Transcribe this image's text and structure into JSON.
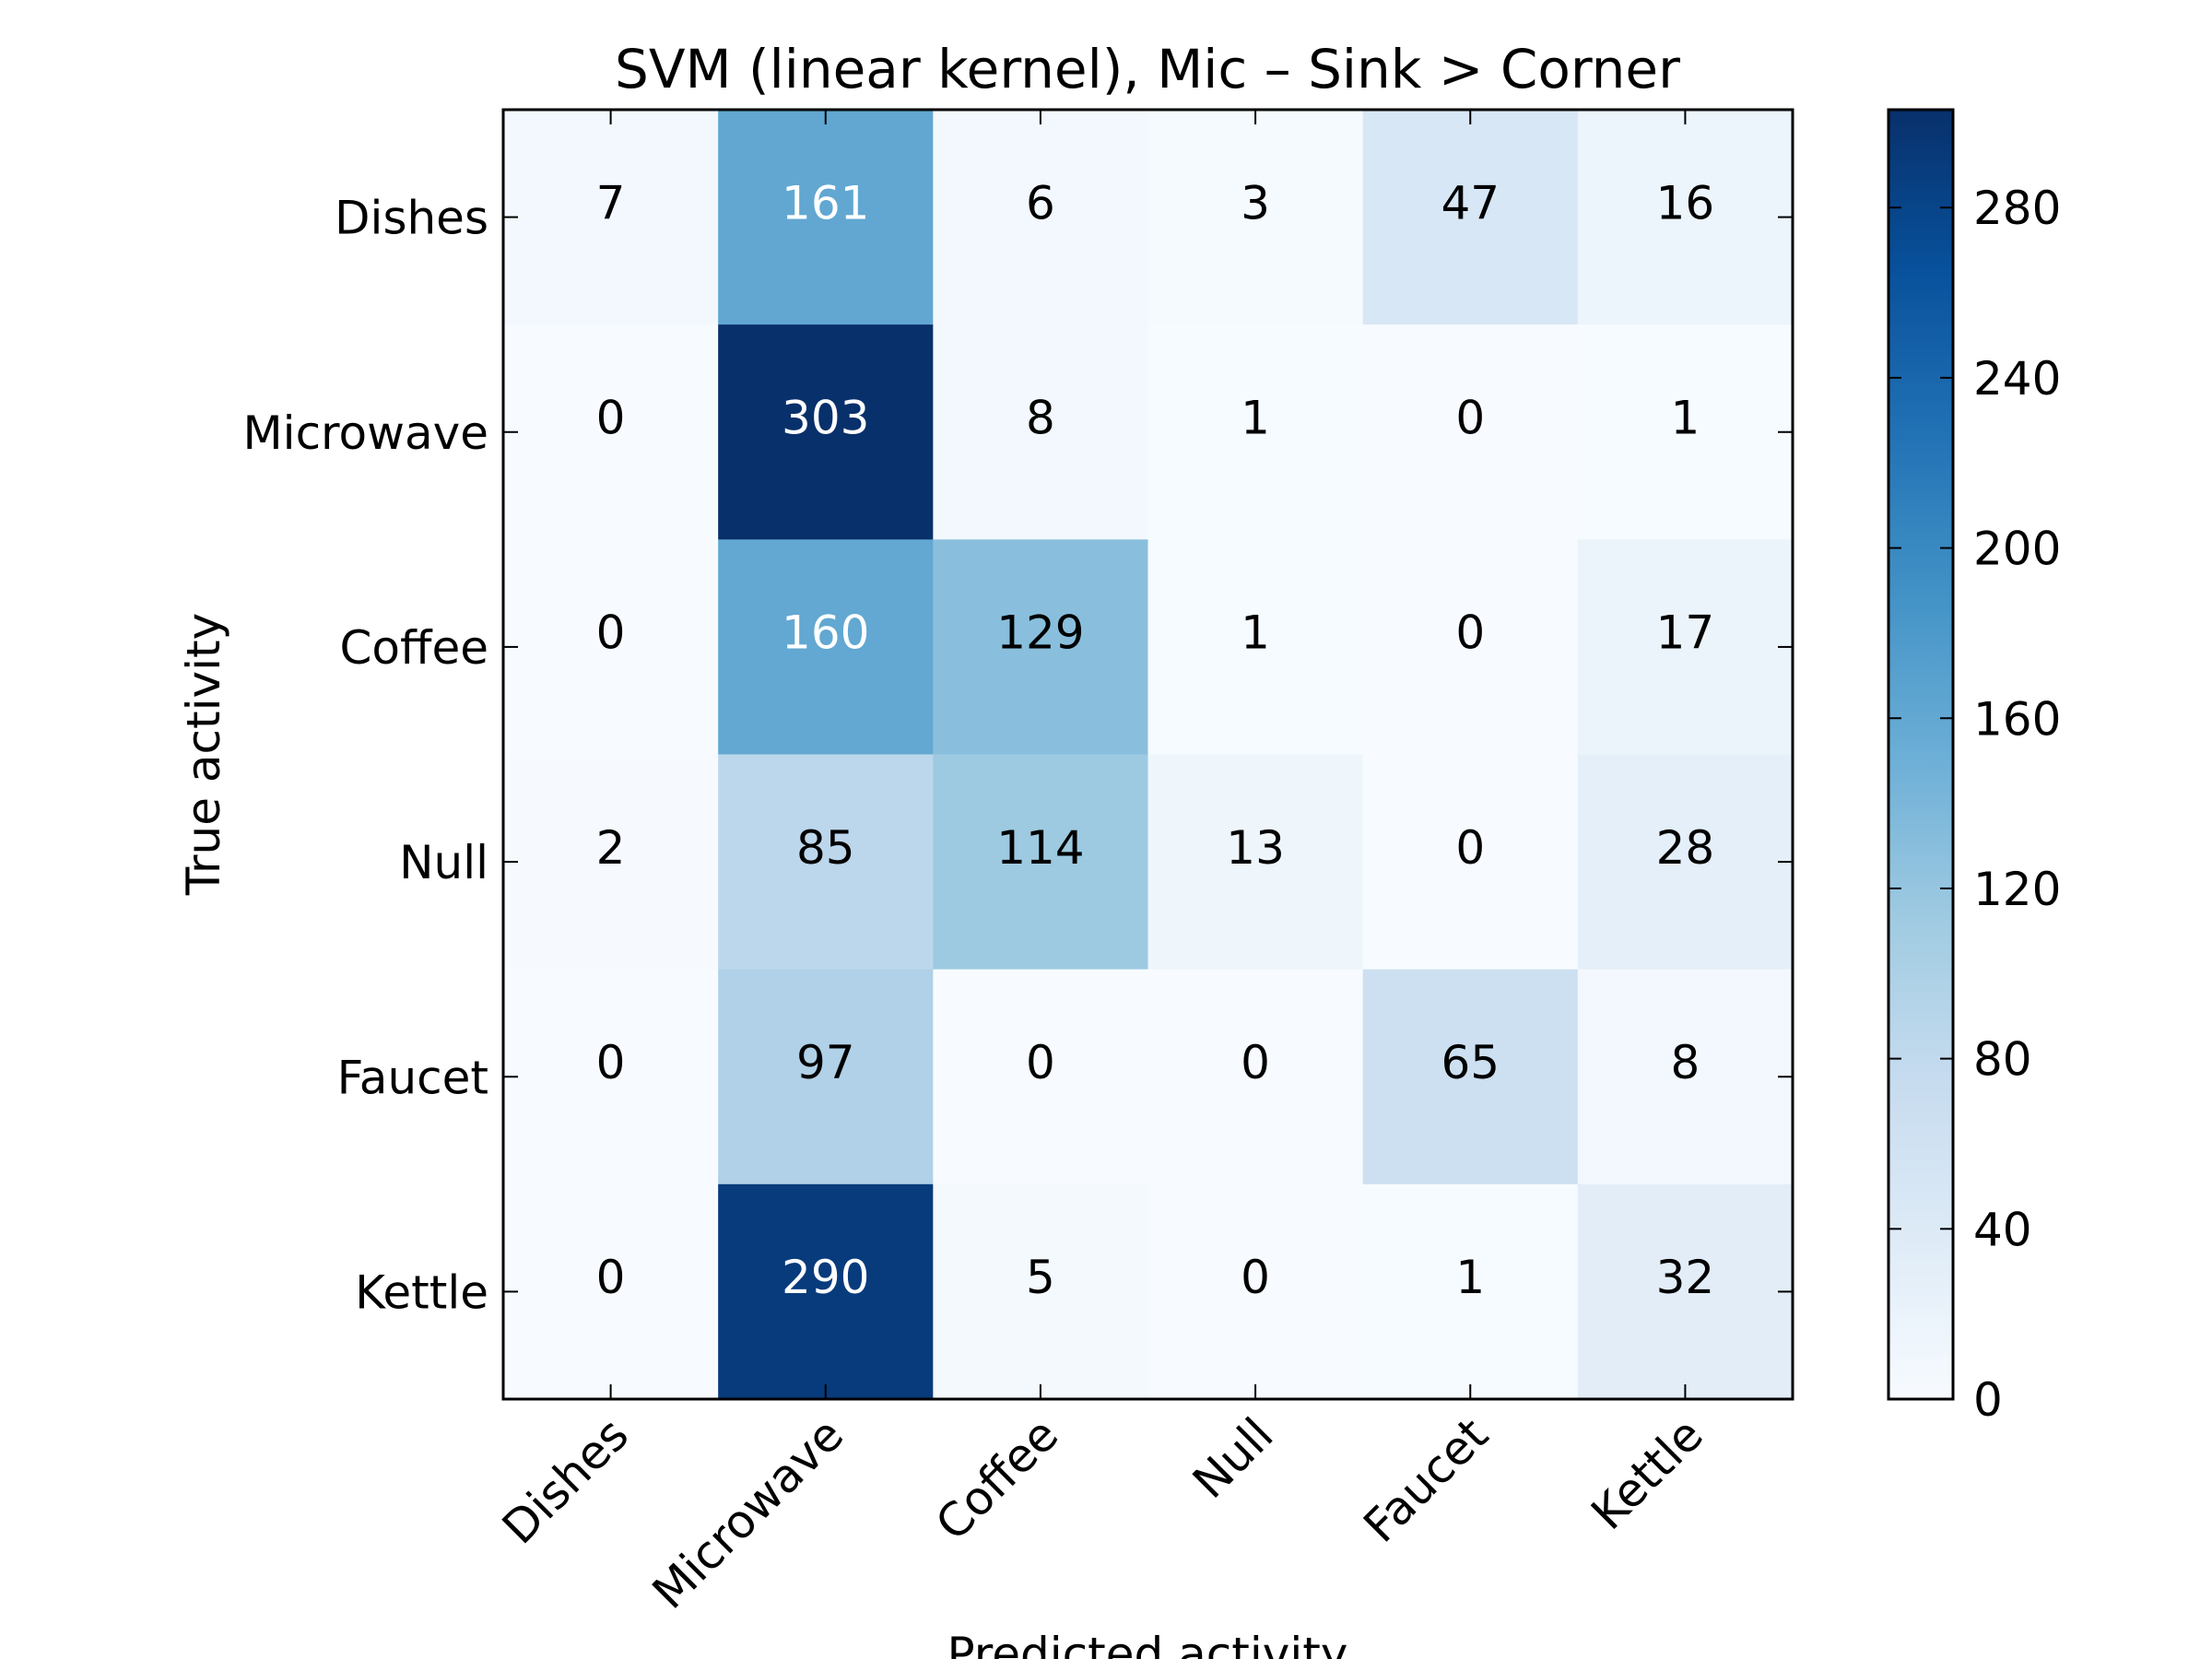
{
  "chart_data": {
    "type": "heatmap",
    "title": "SVM (linear kernel), Mic – Sink > Corner",
    "xlabel": "Predicted activity",
    "ylabel": "True activity",
    "x_categories": [
      "Dishes",
      "Microwave",
      "Coffee",
      "Null",
      "Faucet",
      "Kettle"
    ],
    "y_categories": [
      "Dishes",
      "Microwave",
      "Coffee",
      "Null",
      "Faucet",
      "Kettle"
    ],
    "values": [
      [
        7,
        161,
        6,
        3,
        47,
        16
      ],
      [
        0,
        303,
        8,
        1,
        0,
        1
      ],
      [
        0,
        160,
        129,
        1,
        0,
        17
      ],
      [
        2,
        85,
        114,
        13,
        0,
        28
      ],
      [
        0,
        97,
        0,
        0,
        65,
        8
      ],
      [
        0,
        290,
        5,
        0,
        1,
        32
      ]
    ],
    "colorbar": {
      "colormap": "Blues",
      "range": [
        0,
        303
      ],
      "ticks": [
        0,
        40,
        80,
        120,
        160,
        200,
        240,
        280
      ]
    },
    "grid": false
  }
}
